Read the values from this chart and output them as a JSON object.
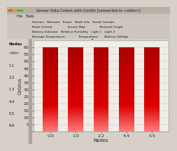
{
  "title": "Temperature",
  "xlabel": "Nodes",
  "ylabel": "Celsius",
  "categories": [
    "0.0",
    "1.0",
    "2.2",
    "4.4",
    "5.5"
  ],
  "values": [
    600,
    600,
    600,
    600,
    600
  ],
  "ylim": [
    0,
    650
  ],
  "yticks": [
    0,
    50,
    100,
    150,
    200,
    250,
    300,
    350,
    400,
    450,
    500,
    550,
    600
  ],
  "title_fontsize": 7,
  "label_fontsize": 5,
  "tick_fontsize": 4.5,
  "window_title": "Sensor Data Collect with Contiki [connected to <stdin>]",
  "bg_color": "#d6d0c8",
  "plot_bg": "#f0ede6",
  "bar_color_dark": "#b50000",
  "bar_color_mid": "#dd1111",
  "bar_color_light": "#ff7777",
  "nodes_list": [
    "<All>",
    "1.1",
    "2.2",
    "1.3",
    "4.4",
    "5.5",
    "6.6"
  ],
  "chrome_row1": "Sensors   Network   Power   Node Info   Serial Console",
  "chrome_row2": "Node Control                Sensor Map               Network Graph",
  "chrome_row3": "Battery Indicator   Relative Humidity   Light 1   Light 2",
  "chrome_row4": "Average Temperature              Temperature       Battery Voltage"
}
